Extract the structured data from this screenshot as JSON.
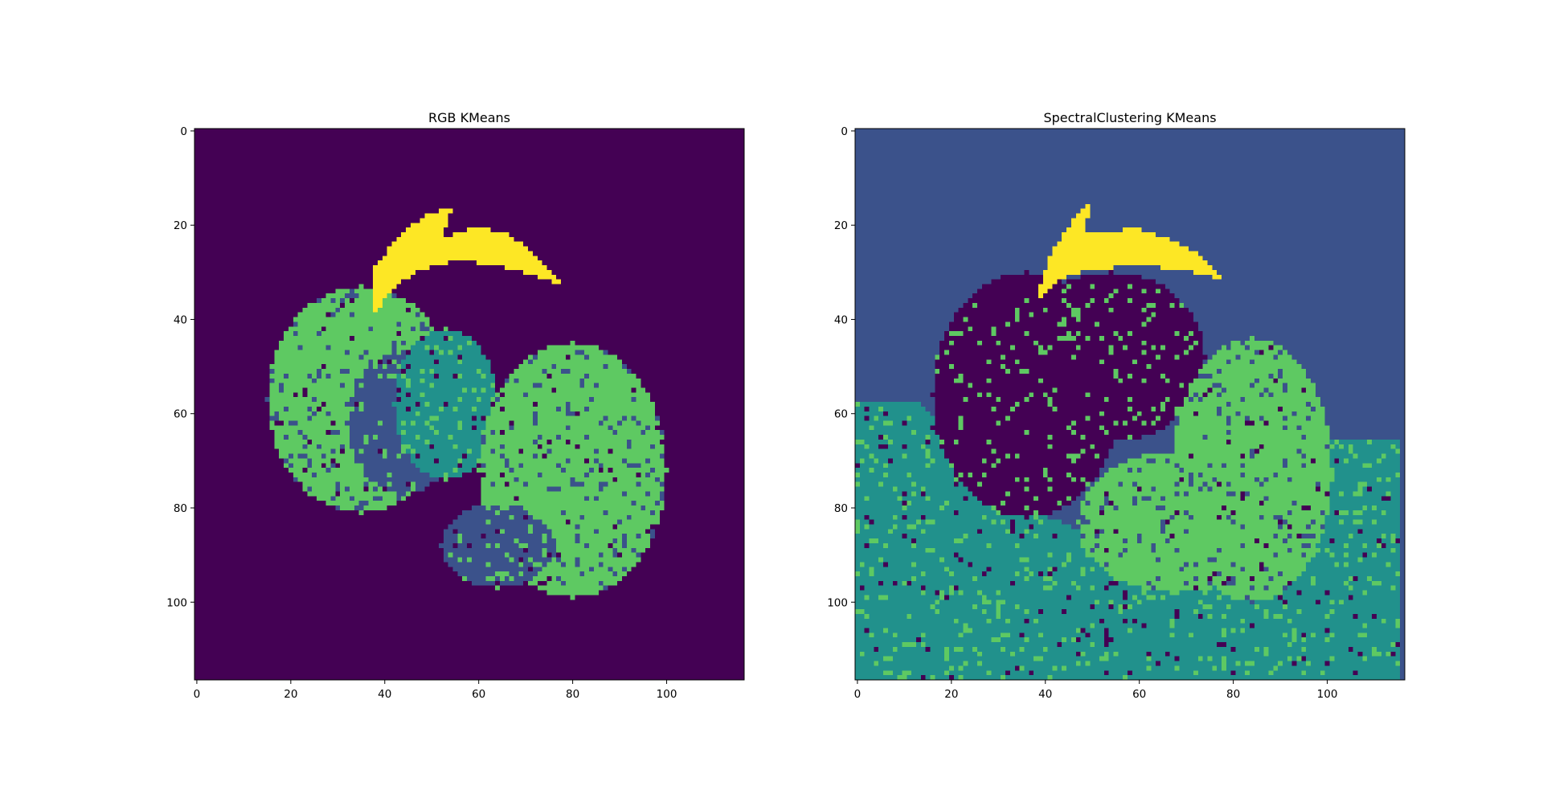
{
  "figure": {
    "background": "#ffffff"
  },
  "chart_data": [
    {
      "type": "heatmap",
      "title": "RGB KMeans",
      "xlim": [
        -0.5,
        116.5
      ],
      "ylim": [
        116.5,
        -0.5
      ],
      "xticks": [
        0,
        20,
        40,
        60,
        80,
        100
      ],
      "yticks": [
        0,
        20,
        40,
        60,
        80,
        100
      ],
      "grid": false,
      "colormap": "viridis",
      "cluster_colors": [
        "#440154",
        "#3b528b",
        "#21918c",
        "#5ec962",
        "#fde725"
      ],
      "background_cluster": 0,
      "regions": [
        {
          "cluster": 3,
          "shape": "ellipse",
          "cx": 35,
          "cy": 57,
          "rx": 20,
          "ry": 24
        },
        {
          "cluster": 1,
          "shape": "ellipse",
          "cx": 44,
          "cy": 62,
          "rx": 12,
          "ry": 15
        },
        {
          "cluster": 2,
          "shape": "ellipse",
          "cx": 53,
          "cy": 58,
          "rx": 11,
          "ry": 16
        },
        {
          "cluster": 3,
          "shape": "ellipse",
          "cx": 80,
          "cy": 72,
          "rx": 20,
          "ry": 27
        },
        {
          "cluster": 1,
          "shape": "ellipse",
          "cx": 64,
          "cy": 88,
          "rx": 12,
          "ry": 9
        },
        {
          "cluster": 4,
          "shape": "polygon",
          "points": [
            [
              38,
              30
            ],
            [
              44,
              22
            ],
            [
              50,
              18
            ],
            [
              55,
              17
            ],
            [
              53,
              23
            ],
            [
              60,
              21
            ],
            [
              66,
              22
            ],
            [
              72,
              26
            ],
            [
              78,
              33
            ],
            [
              72,
              31
            ],
            [
              64,
              29
            ],
            [
              56,
              28
            ],
            [
              48,
              30
            ],
            [
              42,
              34
            ],
            [
              38,
              40
            ]
          ]
        }
      ]
    },
    {
      "type": "heatmap",
      "title": "SpectralClustering KMeans",
      "xlim": [
        -0.5,
        116.5
      ],
      "ylim": [
        116.5,
        -0.5
      ],
      "xticks": [
        0,
        20,
        40,
        60,
        80,
        100
      ],
      "yticks": [
        0,
        20,
        40,
        60,
        80,
        100
      ],
      "grid": false,
      "colormap": "viridis",
      "cluster_colors": [
        "#440154",
        "#3b528b",
        "#21918c",
        "#5ec962",
        "#fde725"
      ],
      "background_cluster": 1,
      "regions": [
        {
          "cluster": 2,
          "shape": "polygon",
          "points": [
            [
              0,
              58
            ],
            [
              14,
              58
            ],
            [
              30,
              78
            ],
            [
              50,
              86
            ],
            [
              70,
              92
            ],
            [
              90,
              88
            ],
            [
              100,
              66
            ],
            [
              116,
              66
            ],
            [
              116,
              117
            ],
            [
              0,
              117
            ]
          ]
        },
        {
          "cluster": 0,
          "shape": "ellipse",
          "cx": 36,
          "cy": 56,
          "rx": 20,
          "ry": 26
        },
        {
          "cluster": 0,
          "shape": "ellipse",
          "cx": 54,
          "cy": 48,
          "rx": 20,
          "ry": 18
        },
        {
          "cluster": 3,
          "shape": "ellipse",
          "cx": 84,
          "cy": 72,
          "rx": 17,
          "ry": 28
        },
        {
          "cluster": 3,
          "shape": "ellipse",
          "cx": 68,
          "cy": 83,
          "rx": 21,
          "ry": 15
        },
        {
          "cluster": 4,
          "shape": "polygon",
          "points": [
            [
              39,
              34
            ],
            [
              42,
              26
            ],
            [
              46,
              20
            ],
            [
              50,
              16
            ],
            [
              49,
              22
            ],
            [
              54,
              22
            ],
            [
              60,
              21
            ],
            [
              68,
              24
            ],
            [
              74,
              27
            ],
            [
              78,
              32
            ],
            [
              70,
              30
            ],
            [
              60,
              29
            ],
            [
              50,
              30
            ],
            [
              44,
              32
            ],
            [
              39,
              36
            ]
          ]
        }
      ]
    }
  ]
}
